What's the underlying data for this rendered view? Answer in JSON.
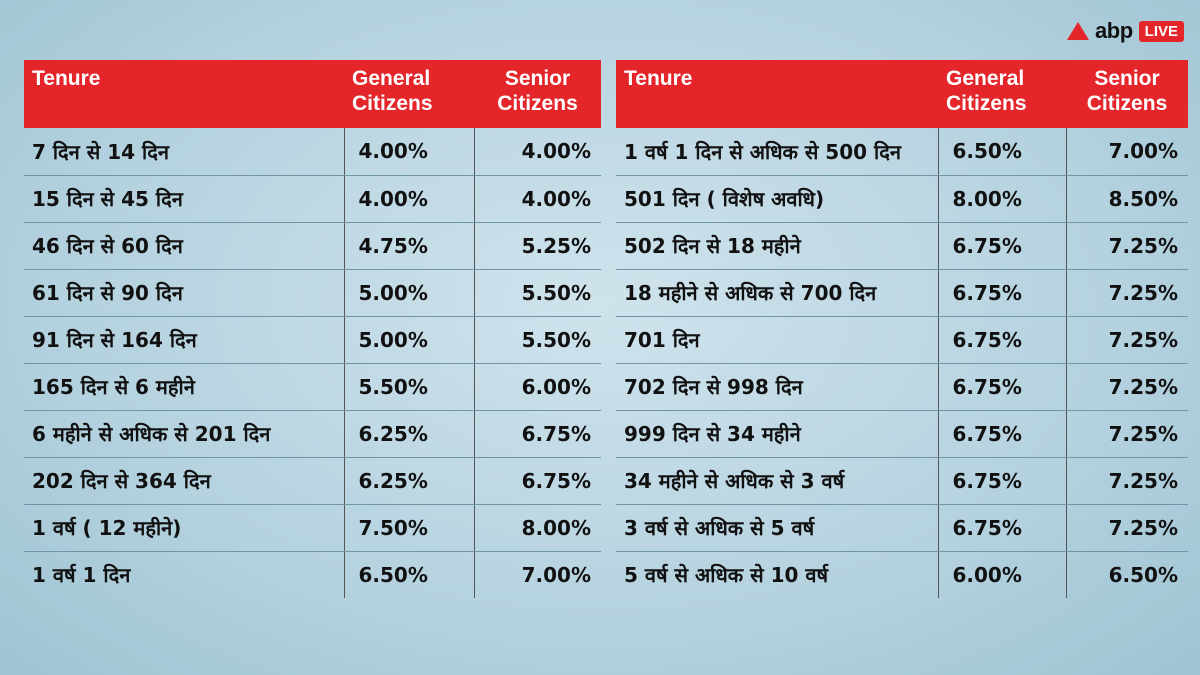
{
  "brand": {
    "name": "abp",
    "live_label": "LIVE",
    "accent": "#e4262b"
  },
  "headers": {
    "tenure": "Tenure",
    "general": "General Citizens",
    "senior": "Senior Citizens"
  },
  "left_rows": [
    {
      "tenure": "7 दिन से 14 दिन",
      "general": "4.00%",
      "senior": "4.00%"
    },
    {
      "tenure": "15 दिन से 45 दिन",
      "general": "4.00%",
      "senior": "4.00%"
    },
    {
      "tenure": "46 दिन से 60 दिन",
      "general": "4.75%",
      "senior": "5.25%"
    },
    {
      "tenure": "61 दिन से 90 दिन",
      "general": "5.00%",
      "senior": "5.50%"
    },
    {
      "tenure": "91 दिन से 164 दिन",
      "general": "5.00%",
      "senior": "5.50%"
    },
    {
      "tenure": "165 दिन से 6 महीने",
      "general": "5.50%",
      "senior": "6.00%"
    },
    {
      "tenure": "6 महीने से अधिक से 201 दिन",
      "general": "6.25%",
      "senior": "6.75%"
    },
    {
      "tenure": "202 दिन से 364 दिन",
      "general": "6.25%",
      "senior": "6.75%"
    },
    {
      "tenure": "1 वर्ष ( 12 महीने)",
      "general": "7.50%",
      "senior": "8.00%"
    },
    {
      "tenure": "1 वर्ष 1 दिन",
      "general": "6.50%",
      "senior": "7.00%"
    }
  ],
  "right_rows": [
    {
      "tenure": "1 वर्ष 1 दिन से अधिक से 500 दिन",
      "general": "6.50%",
      "senior": "7.00%"
    },
    {
      "tenure": "501 दिन ( विशेष अवधि)",
      "general": "8.00%",
      "senior": "8.50%"
    },
    {
      "tenure": "502 दिन से 18 महीने",
      "general": "6.75%",
      "senior": "7.25%"
    },
    {
      "tenure": "18 महीने से अधिक से 700 दिन",
      "general": "6.75%",
      "senior": "7.25%"
    },
    {
      "tenure": "701 दिन",
      "general": "6.75%",
      "senior": "7.25%"
    },
    {
      "tenure": "702 दिन से 998 दिन",
      "general": "6.75%",
      "senior": "7.25%"
    },
    {
      "tenure": "999 दिन से 34 महीने",
      "general": "6.75%",
      "senior": "7.25%"
    },
    {
      "tenure": "34 महीने से अधिक से 3 वर्ष",
      "general": "6.75%",
      "senior": "7.25%"
    },
    {
      "tenure": "3 वर्ष से अधिक से 5 वर्ष",
      "general": "6.75%",
      "senior": "7.25%"
    },
    {
      "tenure": "5 वर्ष से अधिक से 10 वर्ष",
      "general": "6.00%",
      "senior": "6.50%"
    }
  ]
}
